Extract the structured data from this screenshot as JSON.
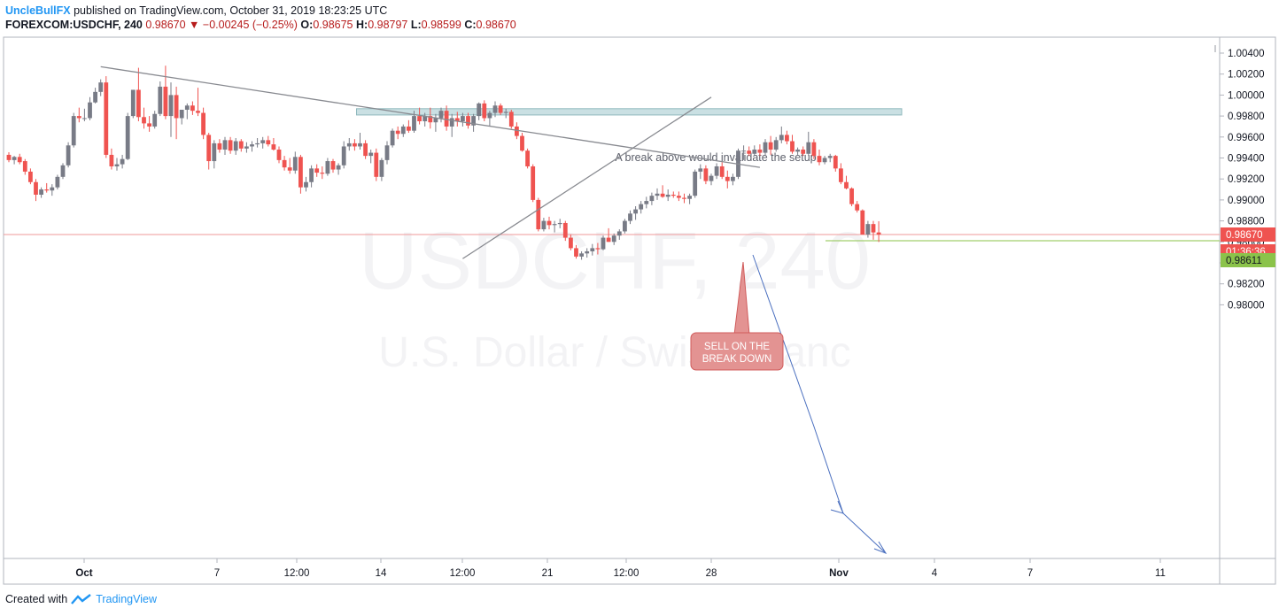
{
  "header": {
    "user": "UncleBullFX",
    "published": "published on TradingView.com, October 31, 2019 18:23:25 UTC",
    "symbol": "FOREXCOM:USDCHF, 240",
    "last": "0.98670",
    "change": "−0.00245 (−0.25%)",
    "o_label": "O:",
    "o": "0.98675",
    "h_label": "H:",
    "h": "0.98797",
    "l_label": "L:",
    "l": "0.98599",
    "c_label": "C:",
    "c": "0.98670"
  },
  "footer": {
    "created": "Created with",
    "brand": "TradingView"
  },
  "watermark": {
    "symbol": "USDCHF, 240",
    "description": "U.S. Dollar / Swiss Franc"
  },
  "annotations": {
    "zone_text": "A break above would invalidate the setup",
    "sell_text_1": "SELL ON THE",
    "sell_text_2": "BREAK DOWN"
  },
  "price_badges": {
    "last": "0.98670",
    "countdown": "01:36:36",
    "target": "0.98611"
  },
  "colors": {
    "up": "#787b86",
    "down": "#ef5350",
    "accent": "#2196f3",
    "zone": "#b8d5d9",
    "target": "#8bc34a"
  },
  "chart_data": {
    "type": "candlestick",
    "ylim": [
      0.98,
      1.005
    ],
    "y_ticks": [
      "1.00400",
      "1.00200",
      "1.00000",
      "0.99800",
      "0.99600",
      "0.99400",
      "0.99200",
      "0.99000",
      "0.98800",
      "0.98600",
      "0.98400",
      "0.98200",
      "0.98000"
    ],
    "x_ticks": [
      "Oct",
      "7",
      "12:00",
      "14",
      "12:00",
      "21",
      "12:00",
      "28",
      "Nov",
      "4",
      "7",
      "11"
    ],
    "candles": [
      [
        0.9943,
        0.99455,
        0.9936,
        0.9938
      ],
      [
        0.9938,
        0.9942,
        0.9934,
        0.9941
      ],
      [
        0.9941,
        0.9944,
        0.9934,
        0.9936
      ],
      [
        0.9937,
        0.9939,
        0.9924,
        0.9927
      ],
      [
        0.9927,
        0.993,
        0.9915,
        0.9917
      ],
      [
        0.9917,
        0.992,
        0.9899,
        0.9905
      ],
      [
        0.9905,
        0.9912,
        0.9902,
        0.991
      ],
      [
        0.991,
        0.9916,
        0.9907,
        0.9909
      ],
      [
        0.9909,
        0.9915,
        0.9904,
        0.9912
      ],
      [
        0.9912,
        0.9924,
        0.991,
        0.9922
      ],
      [
        0.9922,
        0.9935,
        0.992,
        0.9933
      ],
      [
        0.9933,
        0.9955,
        0.9931,
        0.9952
      ],
      [
        0.9952,
        0.9983,
        0.995,
        0.998
      ],
      [
        0.998,
        0.9988,
        0.9974,
        0.9978
      ],
      [
        0.9978,
        0.9987,
        0.9975,
        0.9978
      ],
      [
        0.9978,
        0.9998,
        0.9976,
        0.9993
      ],
      [
        0.9993,
        1.0007,
        0.9992,
        1.0003
      ],
      [
        1.0003,
        1.0015,
        0.9999,
        1.0012
      ],
      [
        1.0012,
        1.0018,
        0.994,
        0.9943
      ],
      [
        0.9943,
        0.9949,
        0.9929,
        0.9932
      ],
      [
        0.9932,
        0.994,
        0.9928,
        0.9934
      ],
      [
        0.9934,
        0.9943,
        0.993,
        0.9939
      ],
      [
        0.9939,
        0.9983,
        0.9938,
        0.998
      ],
      [
        0.998,
        1.0005,
        0.9978,
        1.0005
      ],
      [
        1.0005,
        1.0026,
        0.9975,
        0.9979
      ],
      [
        0.9979,
        0.9988,
        0.9968,
        0.9973
      ],
      [
        0.9973,
        0.998,
        0.9965,
        0.997
      ],
      [
        0.997,
        0.9985,
        0.9968,
        0.9982
      ],
      [
        0.9982,
        1.0013,
        0.998,
        1.0008
      ],
      [
        1.0008,
        1.0028,
        0.9977,
        0.998
      ],
      [
        0.998,
        1.0012,
        0.996,
        1.0
      ],
      [
        1.0,
        1.0008,
        0.9958,
        0.9978
      ],
      [
        0.9978,
        0.9985,
        0.9972,
        0.9986
      ],
      [
        0.9986,
        0.9992,
        0.9977,
        0.999
      ],
      [
        0.999,
        0.9994,
        0.9981,
        0.9985
      ],
      [
        0.9985,
        1.0007,
        0.998,
        0.9983
      ],
      [
        0.9983,
        0.9988,
        0.9958,
        0.9962
      ],
      [
        0.9962,
        0.9964,
        0.9929,
        0.9937
      ],
      [
        0.9937,
        0.9957,
        0.993,
        0.9954
      ],
      [
        0.9954,
        0.9958,
        0.9945,
        0.9948
      ],
      [
        0.9948,
        0.996,
        0.9943,
        0.9957
      ],
      [
        0.9957,
        0.996,
        0.9944,
        0.9947
      ],
      [
        0.9947,
        0.9959,
        0.9943,
        0.9956
      ],
      [
        0.9956,
        0.9958,
        0.9946,
        0.9949
      ],
      [
        0.9949,
        0.9955,
        0.9945,
        0.9951
      ],
      [
        0.9951,
        0.9956,
        0.9946,
        0.9953
      ],
      [
        0.9953,
        0.9959,
        0.995,
        0.9954
      ],
      [
        0.9954,
        0.996,
        0.9949,
        0.9957
      ],
      [
        0.9957,
        0.9961,
        0.9951,
        0.9953
      ],
      [
        0.9953,
        0.9959,
        0.9947,
        0.9948
      ],
      [
        0.9948,
        0.9951,
        0.9935,
        0.9938
      ],
      [
        0.9938,
        0.9942,
        0.9928,
        0.9931
      ],
      [
        0.9931,
        0.994,
        0.9925,
        0.9928
      ],
      [
        0.9928,
        0.9946,
        0.9925,
        0.9941
      ],
      [
        0.9941,
        0.9943,
        0.9906,
        0.9912
      ],
      [
        0.9912,
        0.9922,
        0.9908,
        0.9917
      ],
      [
        0.9917,
        0.9933,
        0.9912,
        0.993
      ],
      [
        0.993,
        0.9934,
        0.9922,
        0.9926
      ],
      [
        0.9926,
        0.9932,
        0.992,
        0.9925
      ],
      [
        0.9925,
        0.994,
        0.9923,
        0.9937
      ],
      [
        0.9937,
        0.9939,
        0.9926,
        0.9929
      ],
      [
        0.9929,
        0.9935,
        0.9924,
        0.9933
      ],
      [
        0.9933,
        0.9956,
        0.993,
        0.9951
      ],
      [
        0.9951,
        0.9959,
        0.9947,
        0.9954
      ],
      [
        0.9954,
        0.9958,
        0.9947,
        0.9951
      ],
      [
        0.9951,
        0.9964,
        0.9948,
        0.9954
      ],
      [
        0.9954,
        0.9957,
        0.9939,
        0.9942
      ],
      [
        0.9942,
        0.9948,
        0.9935,
        0.9945
      ],
      [
        0.9945,
        0.9949,
        0.9918,
        0.9922
      ],
      [
        0.9922,
        0.994,
        0.9918,
        0.9938
      ],
      [
        0.9938,
        0.9956,
        0.9934,
        0.9952
      ],
      [
        0.9952,
        0.9968,
        0.995,
        0.9966
      ],
      [
        0.9966,
        0.997,
        0.9958,
        0.9963
      ],
      [
        0.9963,
        0.9972,
        0.996,
        0.997
      ],
      [
        0.997,
        0.9976,
        0.9964,
        0.9966
      ],
      [
        0.9966,
        0.9985,
        0.9964,
        0.998
      ],
      [
        0.998,
        0.9988,
        0.9972,
        0.9975
      ],
      [
        0.9975,
        0.9983,
        0.997,
        0.998
      ],
      [
        0.998,
        0.9988,
        0.9968,
        0.9974
      ],
      [
        0.9974,
        0.9982,
        0.9965,
        0.9978
      ],
      [
        0.9978,
        0.9988,
        0.9974,
        0.9985
      ],
      [
        0.9985,
        0.999,
        0.9966,
        0.997
      ],
      [
        0.997,
        0.9982,
        0.996,
        0.9978
      ],
      [
        0.9978,
        0.9984,
        0.997,
        0.9975
      ],
      [
        0.9975,
        0.9983,
        0.997,
        0.998
      ],
      [
        0.998,
        0.9983,
        0.9968,
        0.9971
      ],
      [
        0.9971,
        0.9982,
        0.9965,
        0.998
      ],
      [
        0.998,
        0.9993,
        0.9976,
        0.9992
      ],
      [
        0.9992,
        0.9995,
        0.9975,
        0.9978
      ],
      [
        0.9978,
        0.9985,
        0.997,
        0.9983
      ],
      [
        0.9983,
        0.9994,
        0.9979,
        0.999
      ],
      [
        0.999,
        0.9992,
        0.9981,
        0.9983
      ],
      [
        0.9983,
        0.9987,
        0.9978,
        0.9984
      ],
      [
        0.9984,
        0.9986,
        0.9968,
        0.997
      ],
      [
        0.997,
        0.9974,
        0.9958,
        0.9961
      ],
      [
        0.9961,
        0.9964,
        0.9946,
        0.9947
      ],
      [
        0.9947,
        0.9949,
        0.993,
        0.9932
      ],
      [
        0.9932,
        0.9934,
        0.9898,
        0.99
      ],
      [
        0.99,
        0.9902,
        0.987,
        0.9872
      ],
      [
        0.9872,
        0.9883,
        0.987,
        0.988
      ],
      [
        0.988,
        0.9884,
        0.9872,
        0.9876
      ],
      [
        0.9876,
        0.988,
        0.9869,
        0.9877
      ],
      [
        0.9877,
        0.9882,
        0.9873,
        0.9878
      ],
      [
        0.9878,
        0.988,
        0.9861,
        0.9864
      ],
      [
        0.9864,
        0.9867,
        0.9852,
        0.9854
      ],
      [
        0.9854,
        0.9857,
        0.9844,
        0.9846
      ],
      [
        0.9846,
        0.9851,
        0.9843,
        0.9849
      ],
      [
        0.9849,
        0.9854,
        0.9845,
        0.9851
      ],
      [
        0.9851,
        0.9858,
        0.9847,
        0.9854
      ],
      [
        0.9854,
        0.9859,
        0.9848,
        0.9853
      ],
      [
        0.9853,
        0.9866,
        0.9852,
        0.9864
      ],
      [
        0.9864,
        0.9873,
        0.986,
        0.986
      ],
      [
        0.986,
        0.9868,
        0.9857,
        0.9866
      ],
      [
        0.9866,
        0.9872,
        0.9862,
        0.987
      ],
      [
        0.987,
        0.9882,
        0.9868,
        0.988
      ],
      [
        0.988,
        0.989,
        0.9877,
        0.9887
      ],
      [
        0.9887,
        0.9894,
        0.9881,
        0.9891
      ],
      [
        0.9891,
        0.9899,
        0.9887,
        0.9896
      ],
      [
        0.9896,
        0.9903,
        0.9892,
        0.9899
      ],
      [
        0.9899,
        0.9907,
        0.9895,
        0.9904
      ],
      [
        0.9904,
        0.9911,
        0.99,
        0.9906
      ],
      [
        0.9906,
        0.9914,
        0.9902,
        0.9903
      ],
      [
        0.9903,
        0.991,
        0.9899,
        0.9905
      ],
      [
        0.9905,
        0.9908,
        0.9902,
        0.9904
      ],
      [
        0.9904,
        0.9908,
        0.9899,
        0.9902
      ],
      [
        0.9902,
        0.9906,
        0.9897,
        0.9901
      ],
      [
        0.9901,
        0.9906,
        0.9896,
        0.9904
      ],
      [
        0.9904,
        0.9929,
        0.9902,
        0.9927
      ],
      [
        0.9927,
        0.9934,
        0.992,
        0.993
      ],
      [
        0.993,
        0.9933,
        0.9915,
        0.9918
      ],
      [
        0.9918,
        0.9925,
        0.9914,
        0.9923
      ],
      [
        0.9923,
        0.9935,
        0.992,
        0.9932
      ],
      [
        0.9932,
        0.9936,
        0.992,
        0.9922
      ],
      [
        0.9922,
        0.9928,
        0.9911,
        0.9918
      ],
      [
        0.9918,
        0.9925,
        0.9914,
        0.9922
      ],
      [
        0.9922,
        0.9949,
        0.992,
        0.9947
      ],
      [
        0.9947,
        0.9952,
        0.9938,
        0.9947
      ],
      [
        0.9947,
        0.9951,
        0.9942,
        0.9944
      ],
      [
        0.9944,
        0.9952,
        0.9942,
        0.9948
      ],
      [
        0.9948,
        0.9953,
        0.9942,
        0.9945
      ],
      [
        0.9945,
        0.9958,
        0.9943,
        0.9955
      ],
      [
        0.9955,
        0.9961,
        0.9943,
        0.9948
      ],
      [
        0.9948,
        0.996,
        0.9946,
        0.9957
      ],
      [
        0.9957,
        0.997,
        0.9954,
        0.9962
      ],
      [
        0.9962,
        0.9966,
        0.9953,
        0.9956
      ],
      [
        0.9956,
        0.9962,
        0.9944,
        0.9946
      ],
      [
        0.9946,
        0.995,
        0.9943,
        0.9948
      ],
      [
        0.9948,
        0.9951,
        0.9942,
        0.9944
      ],
      [
        0.9944,
        0.9965,
        0.9942,
        0.9955
      ],
      [
        0.9955,
        0.9958,
        0.9939,
        0.9942
      ],
      [
        0.9942,
        0.9948,
        0.9933,
        0.9936
      ],
      [
        0.9936,
        0.9942,
        0.9934,
        0.994
      ],
      [
        0.994,
        0.9944,
        0.9936,
        0.9942
      ],
      [
        0.9942,
        0.9943,
        0.9927,
        0.993
      ],
      [
        0.993,
        0.9935,
        0.9915,
        0.9917
      ],
      [
        0.9917,
        0.9923,
        0.991,
        0.9911
      ],
      [
        0.9911,
        0.9912,
        0.9894,
        0.9896
      ],
      [
        0.9896,
        0.9899,
        0.9888,
        0.989
      ],
      [
        0.989,
        0.9891,
        0.9867,
        0.9867
      ],
      [
        0.9867,
        0.988,
        0.9864,
        0.9877
      ],
      [
        0.9877,
        0.988,
        0.9862,
        0.9869
      ],
      [
        0.9869,
        0.98797,
        0.98599,
        0.9867
      ]
    ],
    "trendlines": [
      {
        "name": "resistance",
        "from": [
          17,
          1.0027
        ],
        "to": [
          139,
          0.9931
        ]
      },
      {
        "name": "support",
        "from": [
          84,
          0.9844
        ],
        "to": [
          130,
          0.9998
        ]
      }
    ],
    "zone": {
      "from_index": 65,
      "to_index": 130,
      "low": 0.9981,
      "high": 0.9987
    },
    "current_price": 0.9867,
    "target_price": 0.98611
  }
}
